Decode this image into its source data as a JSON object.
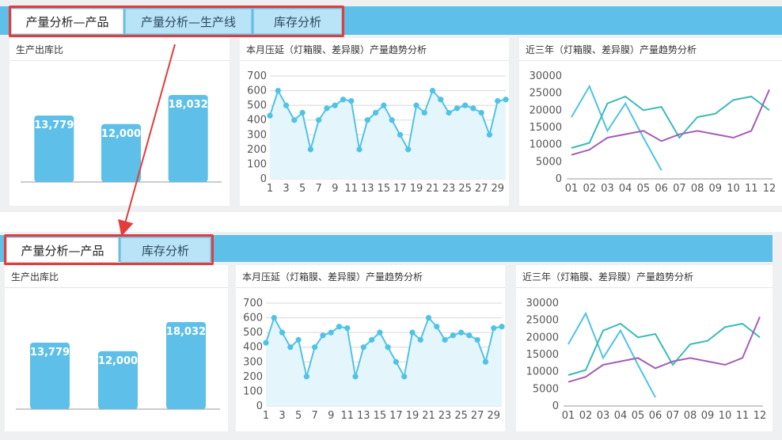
{
  "tabs_top": [
    "产量分析—产品",
    "产量分析—生产线",
    "库存分析"
  ],
  "tabs_bottom": [
    "产量分析—产品",
    "库存分析"
  ],
  "panels": {
    "bar_title": "生产出库比",
    "line_title": "本月压延（灯箱膜、差异膜）产量趋势分析",
    "trend_title": "近三年（灯箱膜、差异膜）产量趋势分析"
  },
  "colors": {
    "accent": "#5ec0e8",
    "bar": "#5ec0e8",
    "line_fill": "#e4f5fc",
    "highlight": "#e23c3c",
    "series": [
      "#4fc3e6",
      "#3bbbb8",
      "#a55db5"
    ]
  },
  "chart_data": [
    {
      "type": "bar",
      "title": "生产出库比",
      "values": [
        13779,
        12000,
        18032
      ],
      "labels": [
        "13,779",
        "12,000",
        "18,032"
      ],
      "ylim": [
        0,
        20000
      ]
    },
    {
      "type": "area",
      "title": "本月压延（灯箱膜、差异膜）产量趋势分析",
      "x": [
        1,
        2,
        3,
        4,
        5,
        6,
        7,
        8,
        9,
        10,
        11,
        12,
        13,
        14,
        15,
        16,
        17,
        18,
        19,
        20,
        21,
        22,
        23,
        24,
        25,
        26,
        27,
        28,
        29,
        30
      ],
      "x_tick_labels": [
        "1",
        "3",
        "5",
        "7",
        "9",
        "11",
        "13",
        "15",
        "17",
        "19",
        "21",
        "23",
        "25",
        "27",
        "29"
      ],
      "y_ticks": [
        0,
        100,
        200,
        300,
        400,
        500,
        600,
        700
      ],
      "ylim": [
        0,
        700
      ],
      "values": [
        430,
        600,
        500,
        400,
        450,
        200,
        400,
        480,
        500,
        540,
        530,
        200,
        400,
        450,
        500,
        400,
        300,
        200,
        500,
        450,
        600,
        540,
        450,
        480,
        500,
        480,
        450,
        300,
        530,
        540
      ],
      "grid": true
    },
    {
      "type": "line",
      "title": "近三年（灯箱膜、差异膜）产量趋势分析",
      "categories": [
        "01",
        "02",
        "03",
        "04",
        "05",
        "06",
        "07",
        "08",
        "09",
        "10",
        "11",
        "12"
      ],
      "y_ticks": [
        0,
        5000,
        10000,
        15000,
        20000,
        25000,
        30000
      ],
      "ylim": [
        0,
        30000
      ],
      "series": [
        {
          "values": [
            18000,
            27000,
            14000,
            22000,
            12000,
            2500,
            null,
            null,
            null,
            null,
            null,
            null
          ]
        },
        {
          "values": [
            9000,
            10500,
            22000,
            24000,
            20000,
            21000,
            12000,
            18000,
            19000,
            23000,
            24000,
            20000
          ]
        },
        {
          "values": [
            7000,
            8500,
            12000,
            13000,
            14000,
            11000,
            13000,
            14000,
            13000,
            12000,
            14000,
            26000
          ]
        }
      ],
      "grid": false
    }
  ]
}
